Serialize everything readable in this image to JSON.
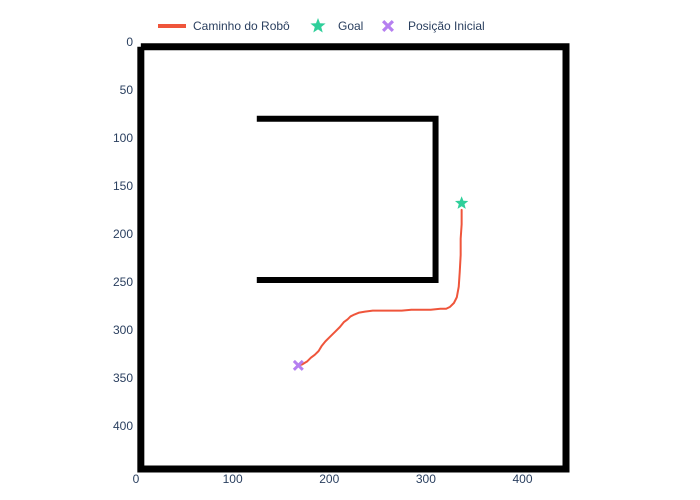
{
  "chart_data": {
    "type": "scatter",
    "title": "",
    "xlabel": "",
    "ylabel": "",
    "xlim": [
      0,
      445
    ],
    "ylim": [
      445,
      0
    ],
    "x_ticks": [
      0,
      100,
      200,
      300,
      400
    ],
    "y_ticks": [
      0,
      50,
      100,
      150,
      200,
      250,
      300,
      350,
      400
    ],
    "y_reversed": true,
    "grid": false,
    "legend_position": "top",
    "walls": [
      {
        "x": [
          5,
          445,
          445,
          5,
          5
        ],
        "y": [
          5,
          5,
          445,
          445,
          5
        ]
      },
      {
        "x": [
          125,
          310,
          310,
          125
        ],
        "y": [
          80,
          80,
          248,
          248
        ]
      }
    ],
    "series": [
      {
        "name": "Caminho do Robô",
        "kind": "line",
        "color": "#ef553b",
        "x": [
          168,
          172,
          177,
          181,
          185,
          189,
          192,
          196,
          201,
          206,
          211,
          215,
          219,
          222,
          226,
          231,
          237,
          245,
          255,
          265,
          275,
          285,
          295,
          305,
          315,
          321,
          325,
          329,
          332,
          334,
          335,
          336,
          336,
          337,
          337
        ],
        "y": [
          337,
          336,
          333,
          329,
          326,
          322,
          317,
          312,
          307,
          302,
          297,
          292,
          289,
          286,
          284,
          282,
          281,
          280,
          280,
          280,
          280,
          279,
          279,
          279,
          278,
          278,
          276,
          272,
          266,
          255,
          240,
          222,
          205,
          190,
          175
        ]
      },
      {
        "name": "Goal",
        "kind": "marker",
        "symbol": "star",
        "color": "#2fcf9a",
        "x": [
          337
        ],
        "y": [
          168
        ]
      },
      {
        "name": "Posição Inicial",
        "kind": "marker",
        "symbol": "x",
        "color": "#b57ff0",
        "x": [
          168
        ],
        "y": [
          337
        ]
      }
    ]
  }
}
